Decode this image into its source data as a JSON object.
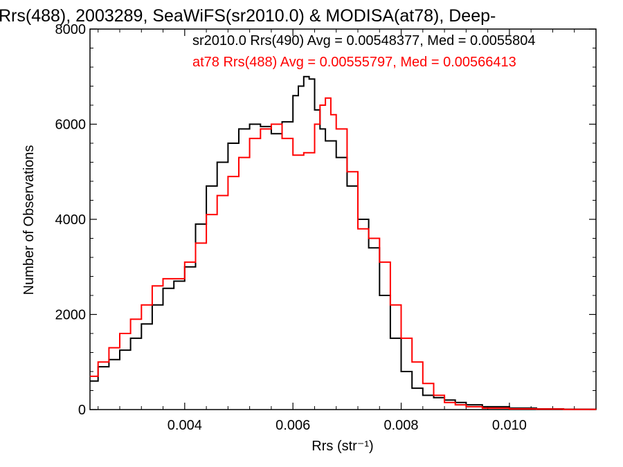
{
  "chart_data": {
    "type": "line",
    "title": "Rrs(488), 2003289, SeaWiFS(sr2010.0) & MODISA(at78), Deep-",
    "xlabel": "Rrs (str⁻¹)",
    "ylabel": "Number of Observations",
    "xlim": [
      0.00225,
      0.0116
    ],
    "ylim": [
      0,
      8000
    ],
    "x_ticks": [
      0.004,
      0.006,
      0.008,
      0.01
    ],
    "x_tick_labels": [
      "0.004",
      "0.006",
      "0.008",
      "0.010"
    ],
    "y_ticks": [
      0,
      2000,
      4000,
      6000,
      8000
    ],
    "y_tick_labels": [
      "0",
      "2000",
      "4000",
      "6000",
      "8000"
    ],
    "grid": false,
    "legend_position": "top-right",
    "series": [
      {
        "name": "sr2010.0 Rrs(490) Avg = 0.00548377, Med = 0.0055804",
        "color": "#000000",
        "x": [
          0.00225,
          0.0024,
          0.0026,
          0.0028,
          0.003,
          0.0032,
          0.0034,
          0.0036,
          0.0038,
          0.004,
          0.0042,
          0.0044,
          0.0046,
          0.0048,
          0.005,
          0.0052,
          0.0054,
          0.0056,
          0.0058,
          0.006,
          0.0061,
          0.0062,
          0.0063,
          0.0064,
          0.0065,
          0.0066,
          0.0068,
          0.007,
          0.0072,
          0.0074,
          0.0076,
          0.0078,
          0.008,
          0.0082,
          0.0084,
          0.0086,
          0.0088,
          0.009,
          0.0092,
          0.0095,
          0.01,
          0.0105,
          0.011,
          0.0116
        ],
        "y": [
          600,
          900,
          1050,
          1250,
          1500,
          1800,
          2200,
          2550,
          2700,
          3000,
          3900,
          4700,
          5200,
          5600,
          5900,
          6000,
          5950,
          5800,
          6050,
          6600,
          6800,
          7000,
          6950,
          6300,
          5900,
          5650,
          5300,
          4700,
          4000,
          3400,
          2400,
          1500,
          800,
          450,
          300,
          250,
          200,
          150,
          100,
          60,
          30,
          15,
          8,
          5
        ]
      },
      {
        "name": "at78 Rrs(488) Avg = 0.00555797, Med = 0.00566413",
        "color": "#ff0000",
        "x": [
          0.00225,
          0.0024,
          0.0026,
          0.0028,
          0.003,
          0.0032,
          0.0034,
          0.0036,
          0.0038,
          0.004,
          0.0042,
          0.0044,
          0.0046,
          0.0048,
          0.005,
          0.0052,
          0.0054,
          0.0056,
          0.0058,
          0.006,
          0.0062,
          0.0064,
          0.0065,
          0.0066,
          0.0067,
          0.0068,
          0.007,
          0.0072,
          0.0074,
          0.0076,
          0.0078,
          0.008,
          0.0082,
          0.0084,
          0.0086,
          0.0088,
          0.009,
          0.0092,
          0.0095,
          0.01,
          0.0105,
          0.011,
          0.0116
        ],
        "y": [
          700,
          1000,
          1300,
          1600,
          1900,
          2200,
          2600,
          2750,
          2750,
          3100,
          3500,
          4100,
          4500,
          4900,
          5300,
          5700,
          5900,
          6000,
          5700,
          5350,
          5400,
          6000,
          6400,
          6550,
          6200,
          5900,
          5000,
          3800,
          3600,
          3100,
          2200,
          1500,
          1000,
          550,
          300,
          150,
          100,
          60,
          30,
          15,
          10,
          5,
          3
        ]
      }
    ]
  }
}
